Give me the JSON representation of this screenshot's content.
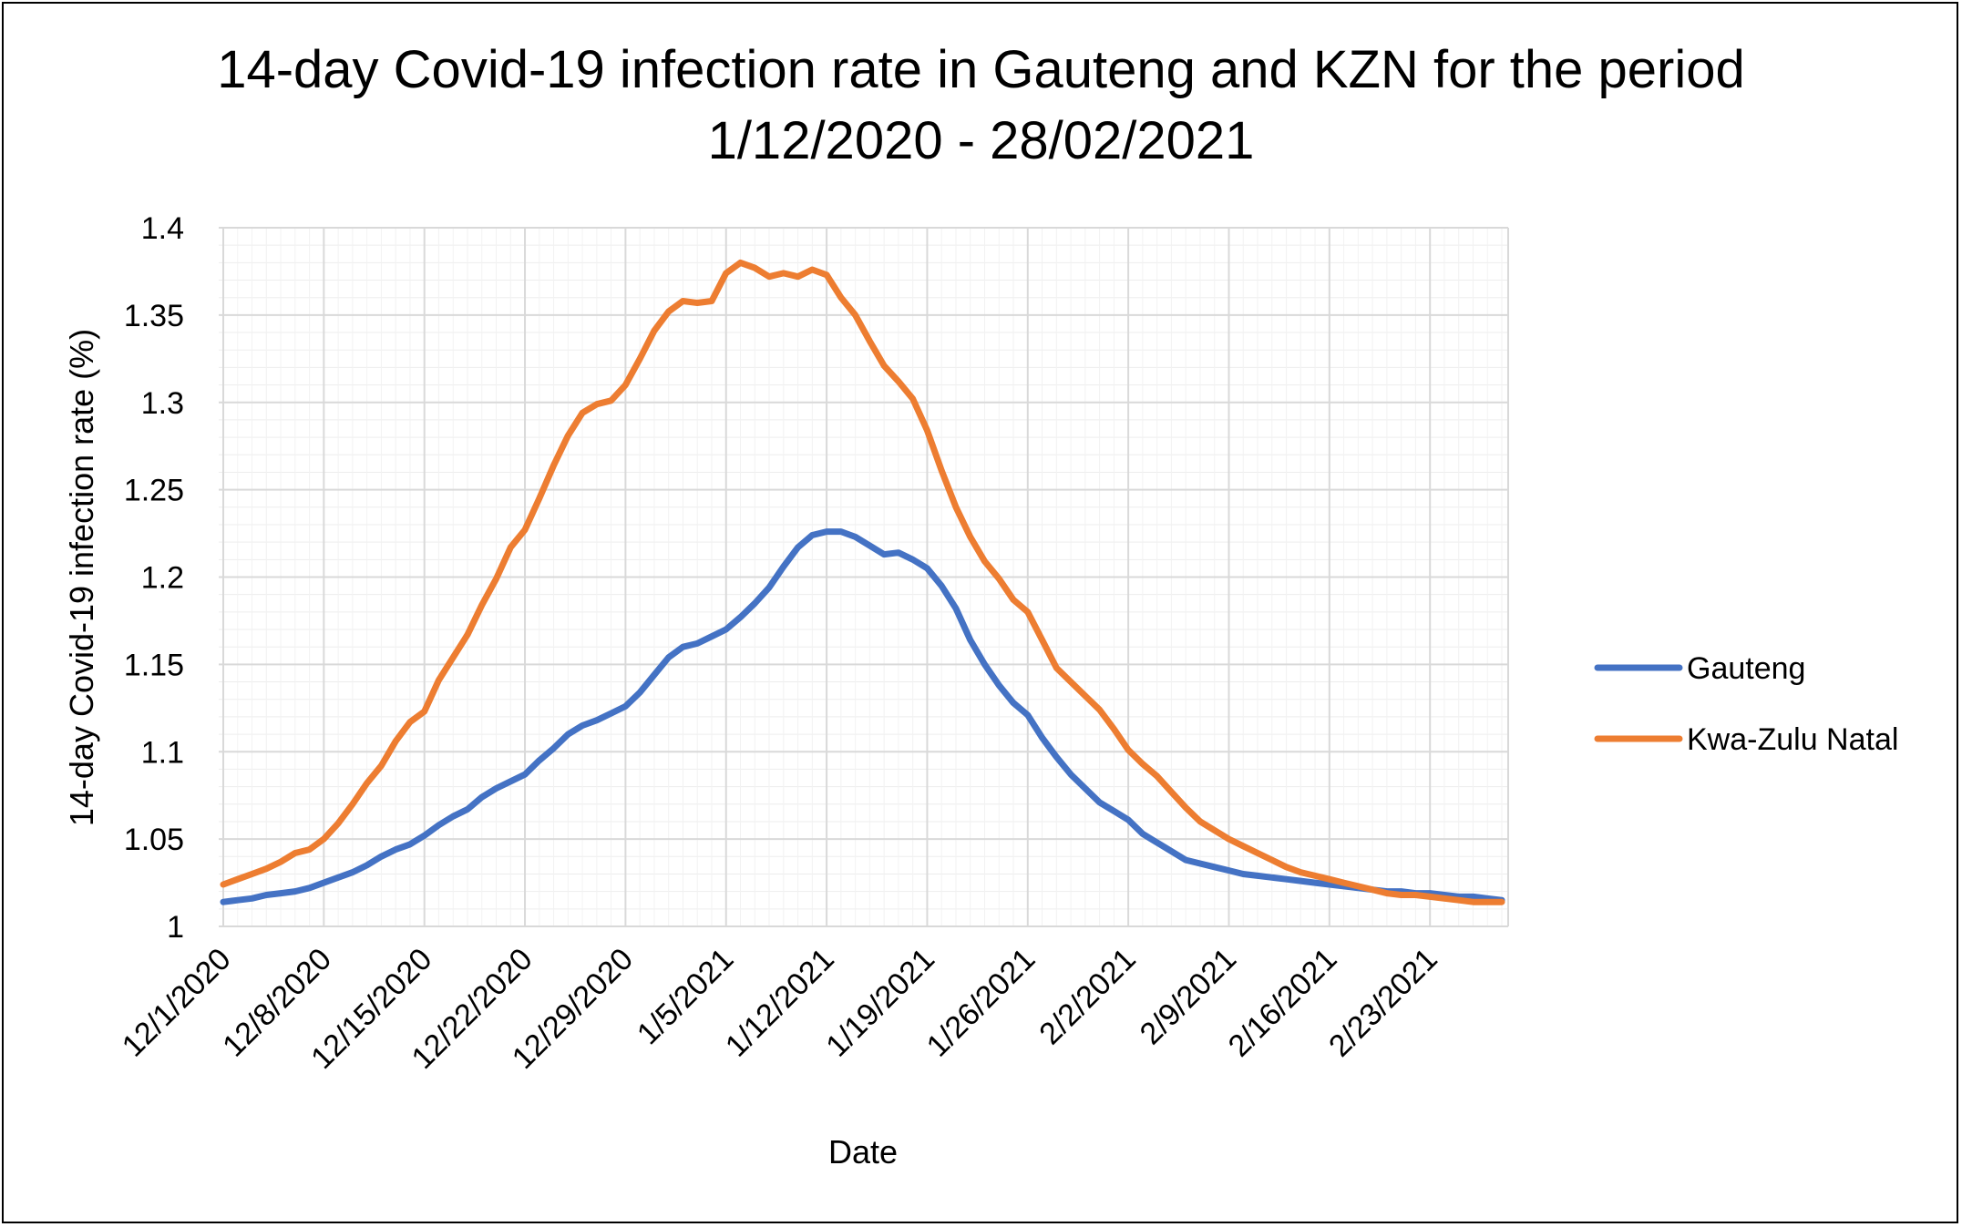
{
  "chart_data": {
    "type": "line",
    "title_lines": [
      "14-day Covid-19 infection rate in Gauteng and KZN for the period",
      "1/12/2020 - 28/02/2021"
    ],
    "xlabel": "Date",
    "ylabel": "14-day Covid-19 infection rate (%)",
    "ylim": [
      1,
      1.4
    ],
    "yticks": [
      "1",
      "1.05",
      "1.1",
      "1.15",
      "1.2",
      "1.25",
      "1.3",
      "1.35",
      "1.4"
    ],
    "xticks": [
      "12/1/2020",
      "12/8/2020",
      "12/15/2020",
      "12/22/2020",
      "12/29/2020",
      "1/5/2021",
      "1/12/2021",
      "1/19/2021",
      "1/26/2021",
      "2/2/2021",
      "2/9/2021",
      "2/16/2021",
      "2/23/2021"
    ],
    "grid": true,
    "legend_position": "right",
    "x": [
      "12/1/2020",
      "12/2/2020",
      "12/3/2020",
      "12/4/2020",
      "12/5/2020",
      "12/6/2020",
      "12/7/2020",
      "12/8/2020",
      "12/9/2020",
      "12/10/2020",
      "12/11/2020",
      "12/12/2020",
      "12/13/2020",
      "12/14/2020",
      "12/15/2020",
      "12/16/2020",
      "12/17/2020",
      "12/18/2020",
      "12/19/2020",
      "12/20/2020",
      "12/21/2020",
      "12/22/2020",
      "12/23/2020",
      "12/24/2020",
      "12/25/2020",
      "12/26/2020",
      "12/27/2020",
      "12/28/2020",
      "12/29/2020",
      "12/30/2020",
      "12/31/2020",
      "1/1/2021",
      "1/2/2021",
      "1/3/2021",
      "1/4/2021",
      "1/5/2021",
      "1/6/2021",
      "1/7/2021",
      "1/8/2021",
      "1/9/2021",
      "1/10/2021",
      "1/11/2021",
      "1/12/2021",
      "1/13/2021",
      "1/14/2021",
      "1/15/2021",
      "1/16/2021",
      "1/17/2021",
      "1/18/2021",
      "1/19/2021",
      "1/20/2021",
      "1/21/2021",
      "1/22/2021",
      "1/23/2021",
      "1/24/2021",
      "1/25/2021",
      "1/26/2021",
      "1/27/2021",
      "1/28/2021",
      "1/29/2021",
      "1/30/2021",
      "1/31/2021",
      "2/1/2021",
      "2/2/2021",
      "2/3/2021",
      "2/4/2021",
      "2/5/2021",
      "2/6/2021",
      "2/7/2021",
      "2/8/2021",
      "2/9/2021",
      "2/10/2021",
      "2/11/2021",
      "2/12/2021",
      "2/13/2021",
      "2/14/2021",
      "2/15/2021",
      "2/16/2021",
      "2/17/2021",
      "2/18/2021",
      "2/19/2021",
      "2/20/2021",
      "2/21/2021",
      "2/22/2021",
      "2/23/2021",
      "2/24/2021",
      "2/25/2021",
      "2/26/2021",
      "2/27/2021",
      "2/28/2021"
    ],
    "series": [
      {
        "name": "Gauteng",
        "color": "#4472C4",
        "values": [
          1.014,
          1.015,
          1.016,
          1.018,
          1.019,
          1.02,
          1.022,
          1.025,
          1.028,
          1.031,
          1.035,
          1.04,
          1.044,
          1.047,
          1.052,
          1.058,
          1.063,
          1.067,
          1.074,
          1.079,
          1.083,
          1.087,
          1.095,
          1.102,
          1.11,
          1.115,
          1.118,
          1.122,
          1.126,
          1.134,
          1.144,
          1.154,
          1.16,
          1.162,
          1.166,
          1.17,
          1.177,
          1.185,
          1.194,
          1.206,
          1.217,
          1.224,
          1.226,
          1.226,
          1.223,
          1.218,
          1.213,
          1.214,
          1.21,
          1.205,
          1.195,
          1.182,
          1.164,
          1.15,
          1.138,
          1.128,
          1.121,
          1.108,
          1.097,
          1.087,
          1.079,
          1.071,
          1.066,
          1.061,
          1.053,
          1.048,
          1.043,
          1.038,
          1.036,
          1.034,
          1.032,
          1.03,
          1.029,
          1.028,
          1.027,
          1.026,
          1.025,
          1.024,
          1.023,
          1.022,
          1.021,
          1.02,
          1.02,
          1.019,
          1.019,
          1.018,
          1.017,
          1.017,
          1.016,
          1.015
        ]
      },
      {
        "name": "Kwa-Zulu Natal",
        "color": "#ED7D31",
        "values": [
          1.024,
          1.027,
          1.03,
          1.033,
          1.037,
          1.042,
          1.044,
          1.05,
          1.059,
          1.07,
          1.082,
          1.092,
          1.106,
          1.117,
          1.123,
          1.141,
          1.154,
          1.167,
          1.184,
          1.199,
          1.217,
          1.227,
          1.245,
          1.264,
          1.281,
          1.294,
          1.299,
          1.301,
          1.31,
          1.325,
          1.341,
          1.352,
          1.358,
          1.357,
          1.358,
          1.374,
          1.38,
          1.377,
          1.372,
          1.374,
          1.372,
          1.376,
          1.373,
          1.36,
          1.35,
          1.335,
          1.321,
          1.312,
          1.302,
          1.284,
          1.261,
          1.24,
          1.223,
          1.209,
          1.199,
          1.187,
          1.18,
          1.164,
          1.148,
          1.14,
          1.132,
          1.124,
          1.113,
          1.101,
          1.093,
          1.086,
          1.077,
          1.068,
          1.06,
          1.055,
          1.05,
          1.046,
          1.042,
          1.038,
          1.034,
          1.031,
          1.029,
          1.027,
          1.025,
          1.023,
          1.021,
          1.019,
          1.018,
          1.018,
          1.017,
          1.016,
          1.015,
          1.014,
          1.014,
          1.014
        ]
      }
    ]
  },
  "colors": {
    "gauteng": "#4472C4",
    "kzn": "#ED7D31",
    "grid": "#D9D9D9"
  }
}
